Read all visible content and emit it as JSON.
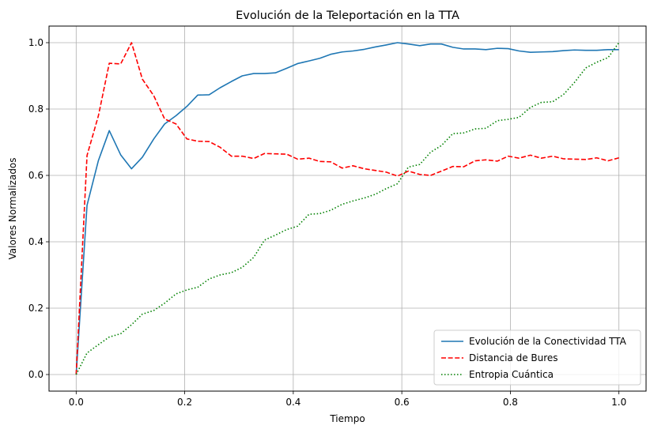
{
  "chart_data": {
    "type": "line",
    "title": "Evolución de la Teleportación en la TTA",
    "xlabel": "Tiempo",
    "ylabel": "Valores Normalizados",
    "xlim": [
      -0.05,
      1.05
    ],
    "ylim": [
      -0.05,
      1.05
    ],
    "xticks": [
      0.0,
      0.2,
      0.4,
      0.6,
      0.8,
      1.0
    ],
    "xtick_labels": [
      "0.0",
      "0.2",
      "0.4",
      "0.6",
      "0.8",
      "1.0"
    ],
    "yticks": [
      0.0,
      0.2,
      0.4,
      0.6,
      0.8,
      1.0
    ],
    "ytick_labels": [
      "0.0",
      "0.2",
      "0.4",
      "0.6",
      "0.8",
      "1.0"
    ],
    "grid": true,
    "legend_position": "lower-right",
    "series": [
      {
        "name": "Evolución de la Conectividad TTA",
        "color": "#1f77b4",
        "style": "solid",
        "x": [
          0.0,
          0.02,
          0.041,
          0.061,
          0.082,
          0.102,
          0.122,
          0.143,
          0.163,
          0.184,
          0.204,
          0.224,
          0.245,
          0.265,
          0.286,
          0.306,
          0.327,
          0.347,
          0.367,
          0.388,
          0.408,
          0.429,
          0.449,
          0.469,
          0.49,
          0.51,
          0.531,
          0.551,
          0.571,
          0.592,
          0.612,
          0.633,
          0.653,
          0.673,
          0.694,
          0.714,
          0.735,
          0.755,
          0.776,
          0.796,
          0.816,
          0.837,
          0.857,
          0.878,
          0.898,
          0.918,
          0.939,
          0.959,
          0.98,
          1.0
        ],
        "y": [
          0.0,
          0.51,
          0.645,
          0.735,
          0.662,
          0.62,
          0.655,
          0.71,
          0.755,
          0.78,
          0.808,
          0.842,
          0.843,
          0.864,
          0.883,
          0.9,
          0.907,
          0.907,
          0.909,
          0.923,
          0.937,
          0.945,
          0.953,
          0.965,
          0.972,
          0.975,
          0.98,
          0.987,
          0.993,
          1.0,
          0.996,
          0.991,
          0.996,
          0.996,
          0.986,
          0.981,
          0.981,
          0.979,
          0.983,
          0.982,
          0.975,
          0.971,
          0.972,
          0.973,
          0.976,
          0.978,
          0.977,
          0.977,
          0.979,
          0.979
        ]
      },
      {
        "name": "Distancia de Bures",
        "color": "#ff0000",
        "style": "dashed",
        "x": [
          0.0,
          0.02,
          0.041,
          0.061,
          0.082,
          0.102,
          0.122,
          0.143,
          0.163,
          0.184,
          0.204,
          0.224,
          0.245,
          0.265,
          0.286,
          0.306,
          0.327,
          0.347,
          0.367,
          0.388,
          0.408,
          0.429,
          0.449,
          0.469,
          0.49,
          0.51,
          0.531,
          0.551,
          0.571,
          0.592,
          0.612,
          0.633,
          0.653,
          0.673,
          0.694,
          0.714,
          0.735,
          0.755,
          0.776,
          0.796,
          0.816,
          0.837,
          0.857,
          0.878,
          0.898,
          0.918,
          0.939,
          0.959,
          0.98,
          1.0
        ],
        "y": [
          0.0,
          0.66,
          0.78,
          0.938,
          0.936,
          1.0,
          0.89,
          0.84,
          0.77,
          0.755,
          0.71,
          0.703,
          0.702,
          0.685,
          0.658,
          0.658,
          0.651,
          0.666,
          0.665,
          0.664,
          0.649,
          0.652,
          0.642,
          0.641,
          0.622,
          0.629,
          0.62,
          0.615,
          0.61,
          0.598,
          0.613,
          0.603,
          0.6,
          0.613,
          0.627,
          0.626,
          0.644,
          0.647,
          0.643,
          0.658,
          0.652,
          0.661,
          0.652,
          0.658,
          0.65,
          0.649,
          0.648,
          0.653,
          0.644,
          0.653
        ]
      },
      {
        "name": "Entropia Cuántica",
        "color": "#008000",
        "style": "dotted",
        "x": [
          0.0,
          0.02,
          0.041,
          0.061,
          0.082,
          0.102,
          0.122,
          0.143,
          0.163,
          0.184,
          0.204,
          0.224,
          0.245,
          0.265,
          0.286,
          0.306,
          0.327,
          0.347,
          0.367,
          0.388,
          0.408,
          0.429,
          0.449,
          0.469,
          0.49,
          0.51,
          0.531,
          0.551,
          0.571,
          0.592,
          0.612,
          0.633,
          0.653,
          0.673,
          0.694,
          0.714,
          0.735,
          0.755,
          0.776,
          0.796,
          0.816,
          0.837,
          0.857,
          0.878,
          0.898,
          0.918,
          0.939,
          0.959,
          0.98,
          1.0
        ],
        "y": [
          0.0,
          0.065,
          0.09,
          0.113,
          0.123,
          0.15,
          0.182,
          0.193,
          0.215,
          0.243,
          0.255,
          0.263,
          0.288,
          0.3,
          0.307,
          0.323,
          0.353,
          0.405,
          0.42,
          0.437,
          0.447,
          0.483,
          0.485,
          0.495,
          0.513,
          0.523,
          0.532,
          0.543,
          0.56,
          0.575,
          0.625,
          0.633,
          0.67,
          0.69,
          0.726,
          0.728,
          0.74,
          0.742,
          0.765,
          0.769,
          0.775,
          0.805,
          0.82,
          0.822,
          0.844,
          0.88,
          0.924,
          0.941,
          0.955,
          1.0
        ]
      }
    ]
  }
}
